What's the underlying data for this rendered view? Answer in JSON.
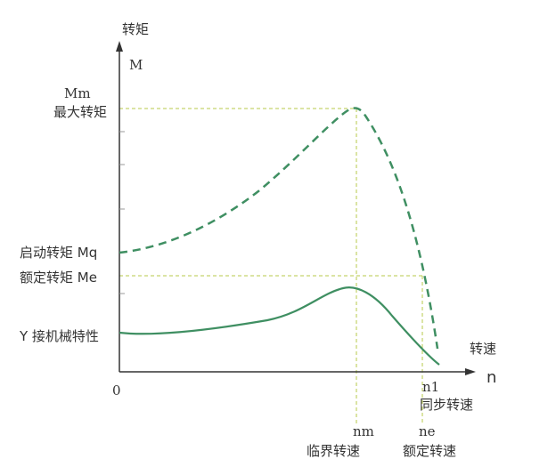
{
  "labels": {
    "y_axis_cn": "转矩",
    "y_axis_sym": "M",
    "x_axis_cn": "转速",
    "x_axis_sym": "n",
    "origin": "0",
    "mm_sym": "Mm",
    "mm_cn": "最大转矩",
    "mq": "启动转矩 Mq",
    "me": "额定转矩 Me",
    "y_curve": "Y 接机械特性",
    "n1_sym": "n1",
    "n1_cn": "同步转速",
    "nm_sym": "nm",
    "nm_cn": "临界转速",
    "ne_sym": "ne",
    "ne_cn": "额定转速"
  },
  "colors": {
    "axis": "#333333",
    "curve": "#3f8f62",
    "guide": "#b7c94a",
    "text": "#333333"
  },
  "curves": {
    "dashed": "delta-connection characteristic (dashed)",
    "solid": "Y-connection characteristic (solid)"
  }
}
